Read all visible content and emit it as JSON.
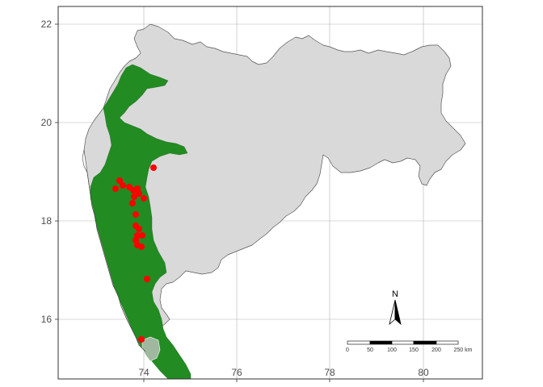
{
  "map": {
    "x_ticks": [
      "74",
      "76",
      "78",
      "80"
    ],
    "y_ticks": [
      "16",
      "18",
      "20",
      "22"
    ],
    "north_label": "N",
    "scale_labels": [
      "0",
      "50",
      "100",
      "150",
      "200",
      "250 km"
    ]
  },
  "colors": {
    "state_fill": "#d9d9d9",
    "forest_fill": "#228b22",
    "point_fill": "#ff0000",
    "grid": "#b3b3b3"
  }
}
